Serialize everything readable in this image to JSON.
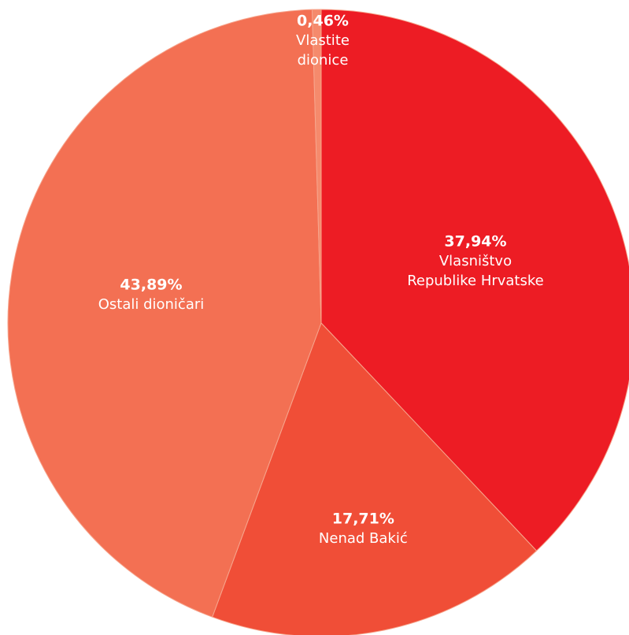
{
  "chart_data": {
    "type": "pie",
    "title": "",
    "slices": [
      {
        "value_label": "37,94%",
        "value": 37.94,
        "label_lines": [
          "Vlasništvo",
          "Republike Hrvatske"
        ],
        "color": "#ed1c24"
      },
      {
        "value_label": "17,71%",
        "value": 17.71,
        "label_lines": [
          "Nenad Bakić"
        ],
        "color": "#f04e37"
      },
      {
        "value_label": "43,89%",
        "value": 43.89,
        "label_lines": [
          "Ostali dioničari"
        ],
        "color": "#f37053"
      },
      {
        "value_label": "0,46%",
        "value": 0.46,
        "label_lines": [
          "Vlastite",
          "dionice"
        ],
        "color": "#f58a6c"
      }
    ],
    "start": "top",
    "direction": "clockwise",
    "legend": "none"
  }
}
